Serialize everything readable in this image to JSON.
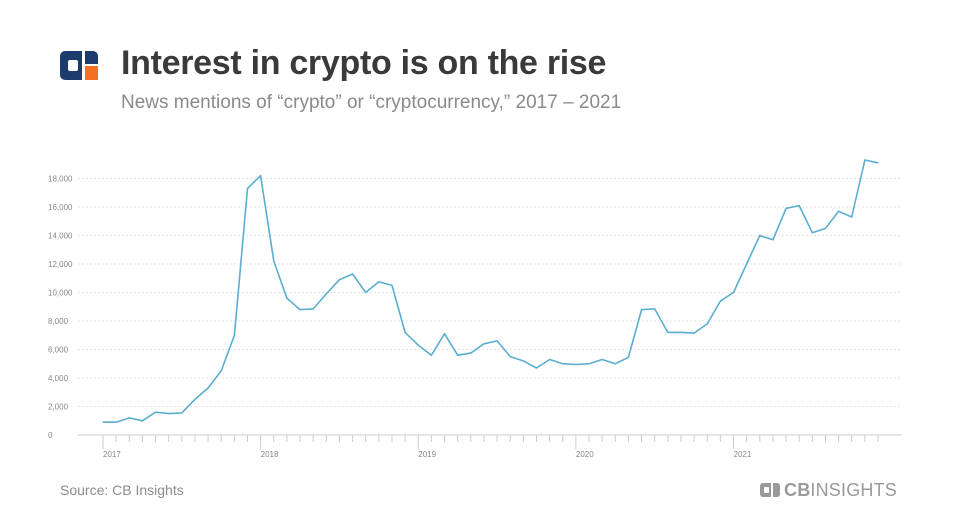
{
  "header": {
    "title": "Interest in crypto is on the rise",
    "subtitle": "News mentions of “crypto” or “cryptocurrency,” 2017 – 2021",
    "logo_icon": "cb-insights-logo-icon"
  },
  "footer": {
    "source": "Source: CB Insights",
    "brand_bold": "CB",
    "brand_thin": "INSIGHTS"
  },
  "colors": {
    "line": "#5aaed0",
    "logo_navy": "#1d3c6e",
    "logo_orange": "#f36f21",
    "grid": "#e3e3e3",
    "axis": "#cccccc"
  },
  "chart_data": {
    "type": "line",
    "title": "Interest in crypto is on the rise",
    "subtitle": "News mentions of “crypto” or “cryptocurrency,” 2017 – 2021",
    "xlabel": "",
    "ylabel": "",
    "x_tick_labels": [
      "2017",
      "2018",
      "2019",
      "2020",
      "2021"
    ],
    "y_tick_labels": [
      "0",
      "2,000",
      "4,000",
      "6,000",
      "8,000",
      "10,000",
      "12,000",
      "14,000",
      "16,000",
      "18,000"
    ],
    "ylim": [
      0,
      20000
    ],
    "grid": true,
    "legend": "none",
    "x": [
      "2017-01",
      "2017-02",
      "2017-03",
      "2017-04",
      "2017-05",
      "2017-06",
      "2017-07",
      "2017-08",
      "2017-09",
      "2017-10",
      "2017-11",
      "2017-12",
      "2018-01",
      "2018-02",
      "2018-03",
      "2018-04",
      "2018-05",
      "2018-06",
      "2018-07",
      "2018-08",
      "2018-09",
      "2018-10",
      "2018-11",
      "2018-12",
      "2019-01",
      "2019-02",
      "2019-03",
      "2019-04",
      "2019-05",
      "2019-06",
      "2019-07",
      "2019-08",
      "2019-09",
      "2019-10",
      "2019-11",
      "2019-12",
      "2020-01",
      "2020-02",
      "2020-03",
      "2020-04",
      "2020-05",
      "2020-06",
      "2020-07",
      "2020-08",
      "2020-09",
      "2020-10",
      "2020-11",
      "2020-12",
      "2021-01",
      "2021-02",
      "2021-03",
      "2021-04",
      "2021-05",
      "2021-06",
      "2021-07",
      "2021-08",
      "2021-09",
      "2021-10",
      "2021-11",
      "2021-12"
    ],
    "series": [
      {
        "values": [
          900,
          900,
          1200,
          1000,
          1600,
          1500,
          1550,
          2500,
          3300,
          4500,
          7000,
          17300,
          18200,
          12200,
          9600,
          8800,
          8850,
          9900,
          10900,
          11300,
          10000,
          10750,
          10500,
          7200,
          6300,
          5600,
          7100,
          5600,
          5750,
          6400,
          6600,
          5500,
          5200,
          4700,
          5300,
          5000,
          4950,
          5000,
          5300,
          5000,
          5450,
          8800,
          8850,
          7200,
          7200,
          7150,
          7800,
          9400,
          10000,
          12000,
          14000,
          13700,
          15900,
          16100,
          14200,
          14500,
          15700,
          15300,
          19300,
          19100
        ]
      }
    ]
  }
}
